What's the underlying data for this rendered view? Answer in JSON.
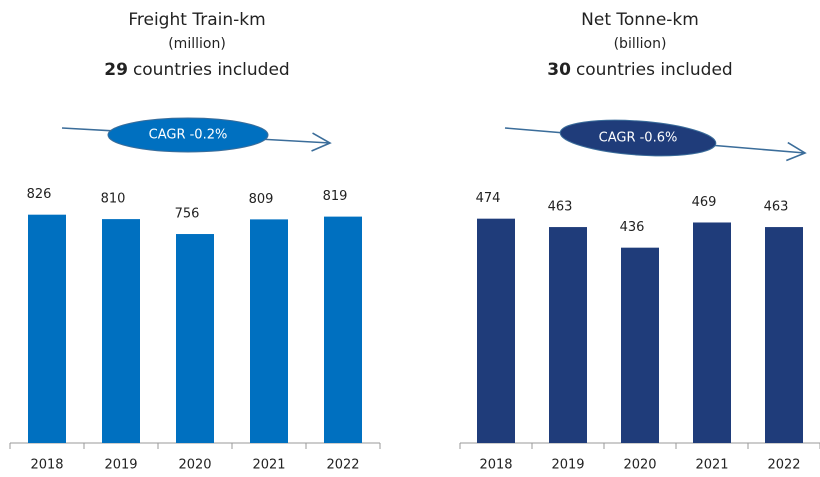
{
  "chart_data": [
    {
      "type": "bar",
      "title": "Freight Train-km",
      "subtitle": "(million)",
      "note_bold": "29",
      "note": "countries included",
      "annotation": "CAGR -0.2%",
      "categories": [
        "2018",
        "2019",
        "2020",
        "2021",
        "2022"
      ],
      "values": [
        826,
        810,
        756,
        809,
        819
      ],
      "color": "#0070c0",
      "ylim": [
        0,
        1060
      ]
    },
    {
      "type": "bar",
      "title": "Net Tonne-km",
      "subtitle": "(billion)",
      "note_bold": "30",
      "note": "countries included",
      "annotation": "CAGR -0.6%",
      "categories": [
        "2018",
        "2019",
        "2020",
        "2021",
        "2022"
      ],
      "values": [
        474,
        463,
        436,
        469,
        463
      ],
      "color": "#1f3c7a",
      "ylim": [
        180,
        564
      ]
    }
  ]
}
